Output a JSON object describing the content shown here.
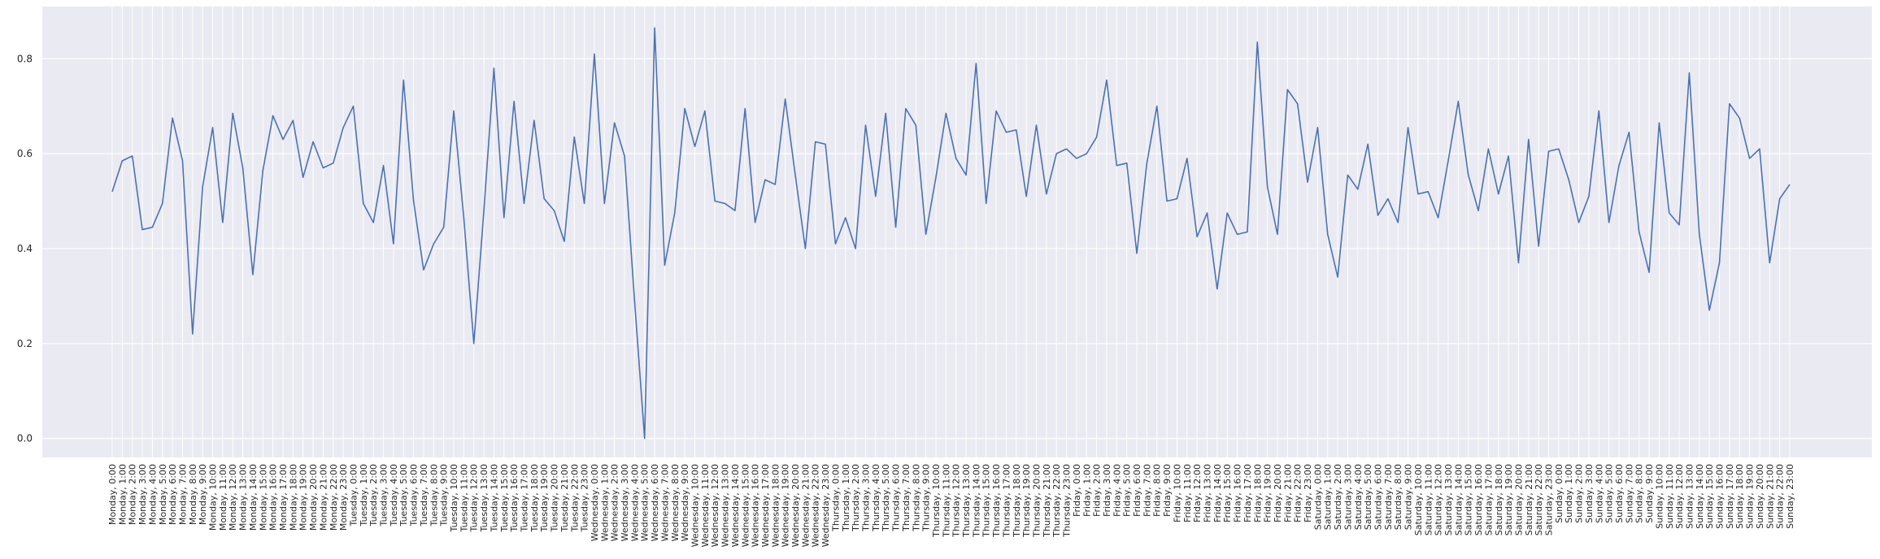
{
  "chart_data": {
    "type": "line",
    "title": "",
    "xlabel": "",
    "ylabel": "",
    "ylim": [
      -0.04,
      0.91
    ],
    "yticks": [
      "0.0",
      "0.2",
      "0.4",
      "0.6",
      "0.8"
    ],
    "grid": true,
    "legend": "none",
    "colors": {
      "background": "#eaeaf2",
      "grid": "#ffffff",
      "line": "#4c72b0",
      "text": "#262626"
    },
    "categories": [
      "Monday, 0:00",
      "Monday, 1:00",
      "Monday, 2:00",
      "Monday, 3:00",
      "Monday, 4:00",
      "Monday, 5:00",
      "Monday, 6:00",
      "Monday, 7:00",
      "Monday, 8:00",
      "Monday, 9:00",
      "Monday, 10:00",
      "Monday, 11:00",
      "Monday, 12:00",
      "Monday, 13:00",
      "Monday, 14:00",
      "Monday, 15:00",
      "Monday, 16:00",
      "Monday, 17:00",
      "Monday, 18:00",
      "Monday, 19:00",
      "Monday, 20:00",
      "Monday, 21:00",
      "Monday, 22:00",
      "Monday, 23:00",
      "Tuesday, 0:00",
      "Tuesday, 1:00",
      "Tuesday, 2:00",
      "Tuesday, 3:00",
      "Tuesday, 4:00",
      "Tuesday, 5:00",
      "Tuesday, 6:00",
      "Tuesday, 7:00",
      "Tuesday, 8:00",
      "Tuesday, 9:00",
      "Tuesday, 10:00",
      "Tuesday, 11:00",
      "Tuesday, 12:00",
      "Tuesday, 13:00",
      "Tuesday, 14:00",
      "Tuesday, 15:00",
      "Tuesday, 16:00",
      "Tuesday, 17:00",
      "Tuesday, 18:00",
      "Tuesday, 19:00",
      "Tuesday, 20:00",
      "Tuesday, 21:00",
      "Tuesday, 22:00",
      "Tuesday, 23:00",
      "Wednesday, 0:00",
      "Wednesday, 1:00",
      "Wednesday, 2:00",
      "Wednesday, 3:00",
      "Wednesday, 4:00",
      "Wednesday, 5:00",
      "Wednesday, 6:00",
      "Wednesday, 7:00",
      "Wednesday, 8:00",
      "Wednesday, 9:00",
      "Wednesday, 10:00",
      "Wednesday, 11:00",
      "Wednesday, 12:00",
      "Wednesday, 13:00",
      "Wednesday, 14:00",
      "Wednesday, 15:00",
      "Wednesday, 16:00",
      "Wednesday, 17:00",
      "Wednesday, 18:00",
      "Wednesday, 19:00",
      "Wednesday, 20:00",
      "Wednesday, 21:00",
      "Wednesday, 22:00",
      "Wednesday, 23:00",
      "Thursday, 0:00",
      "Thursday, 1:00",
      "Thursday, 2:00",
      "Thursday, 3:00",
      "Thursday, 4:00",
      "Thursday, 5:00",
      "Thursday, 6:00",
      "Thursday, 7:00",
      "Thursday, 8:00",
      "Thursday, 9:00",
      "Thursday, 10:00",
      "Thursday, 11:00",
      "Thursday, 12:00",
      "Thursday, 13:00",
      "Thursday, 14:00",
      "Thursday, 15:00",
      "Thursday, 16:00",
      "Thursday, 17:00",
      "Thursday, 18:00",
      "Thursday, 19:00",
      "Thursday, 20:00",
      "Thursday, 21:00",
      "Thursday, 22:00",
      "Thursday, 23:00",
      "Friday, 0:00",
      "Friday, 1:00",
      "Friday, 2:00",
      "Friday, 3:00",
      "Friday, 4:00",
      "Friday, 5:00",
      "Friday, 6:00",
      "Friday, 7:00",
      "Friday, 8:00",
      "Friday, 9:00",
      "Friday, 10:00",
      "Friday, 11:00",
      "Friday, 12:00",
      "Friday, 13:00",
      "Friday, 14:00",
      "Friday, 15:00",
      "Friday, 16:00",
      "Friday, 17:00",
      "Friday, 18:00",
      "Friday, 19:00",
      "Friday, 20:00",
      "Friday, 21:00",
      "Friday, 22:00",
      "Friday, 23:00",
      "Saturday, 0:00",
      "Saturday, 1:00",
      "Saturday, 2:00",
      "Saturday, 3:00",
      "Saturday, 4:00",
      "Saturday, 5:00",
      "Saturday, 6:00",
      "Saturday, 7:00",
      "Saturday, 8:00",
      "Saturday, 9:00",
      "Saturday, 10:00",
      "Saturday, 11:00",
      "Saturday, 12:00",
      "Saturday, 13:00",
      "Saturday, 14:00",
      "Saturday, 15:00",
      "Saturday, 16:00",
      "Saturday, 17:00",
      "Saturday, 18:00",
      "Saturday, 19:00",
      "Saturday, 20:00",
      "Saturday, 21:00",
      "Saturday, 22:00",
      "Saturday, 23:00",
      "Sunday, 0:00",
      "Sunday, 1:00",
      "Sunday, 2:00",
      "Sunday, 3:00",
      "Sunday, 4:00",
      "Sunday, 5:00",
      "Sunday, 6:00",
      "Sunday, 7:00",
      "Sunday, 8:00",
      "Sunday, 9:00",
      "Sunday, 10:00",
      "Sunday, 11:00",
      "Sunday, 12:00",
      "Sunday, 13:00",
      "Sunday, 14:00",
      "Sunday, 15:00",
      "Sunday, 16:00",
      "Sunday, 17:00",
      "Sunday, 18:00",
      "Sunday, 19:00",
      "Sunday, 20:00",
      "Sunday, 21:00",
      "Sunday, 22:00",
      "Sunday, 23:00"
    ],
    "series": [
      {
        "values": [
          0.52,
          0.585,
          0.595,
          0.44,
          0.445,
          0.495,
          0.675,
          0.585,
          0.22,
          0.53,
          0.655,
          0.455,
          0.685,
          0.57,
          0.345,
          0.565,
          0.68,
          0.63,
          0.67,
          0.55,
          0.625,
          0.57,
          0.58,
          0.655,
          0.7,
          0.495,
          0.455,
          0.575,
          0.41,
          0.755,
          0.5,
          0.355,
          0.41,
          0.445,
          0.69,
          0.465,
          0.2,
          0.48,
          0.78,
          0.465,
          0.71,
          0.495,
          0.67,
          0.505,
          0.48,
          0.415,
          0.635,
          0.495,
          0.81,
          0.495,
          0.665,
          0.595,
          0.29,
          0.0,
          0.865,
          0.365,
          0.475,
          0.695,
          0.615,
          0.69,
          0.5,
          0.495,
          0.48,
          0.695,
          0.455,
          0.545,
          0.535,
          0.715,
          0.555,
          0.4,
          0.625,
          0.62,
          0.41,
          0.465,
          0.4,
          0.66,
          0.51,
          0.685,
          0.445,
          0.695,
          0.66,
          0.43,
          0.55,
          0.685,
          0.59,
          0.555,
          0.79,
          0.495,
          0.69,
          0.645,
          0.65,
          0.51,
          0.66,
          0.515,
          0.6,
          0.61,
          0.59,
          0.6,
          0.635,
          0.755,
          0.575,
          0.58,
          0.39,
          0.58,
          0.7,
          0.5,
          0.505,
          0.59,
          0.425,
          0.475,
          0.315,
          0.475,
          0.43,
          0.435,
          0.835,
          0.53,
          0.43,
          0.735,
          0.705,
          0.54,
          0.655,
          0.43,
          0.34,
          0.555,
          0.525,
          0.62,
          0.47,
          0.505,
          0.455,
          0.655,
          0.515,
          0.52,
          0.465,
          0.585,
          0.71,
          0.555,
          0.48,
          0.61,
          0.515,
          0.595,
          0.37,
          0.63,
          0.405,
          0.605,
          0.61,
          0.545,
          0.455,
          0.51,
          0.69,
          0.455,
          0.575,
          0.645,
          0.435,
          0.35,
          0.665,
          0.475,
          0.45,
          0.77,
          0.43,
          0.27,
          0.37,
          0.705,
          0.675,
          0.59,
          0.61,
          0.37,
          0.505,
          0.535
        ]
      }
    ]
  }
}
